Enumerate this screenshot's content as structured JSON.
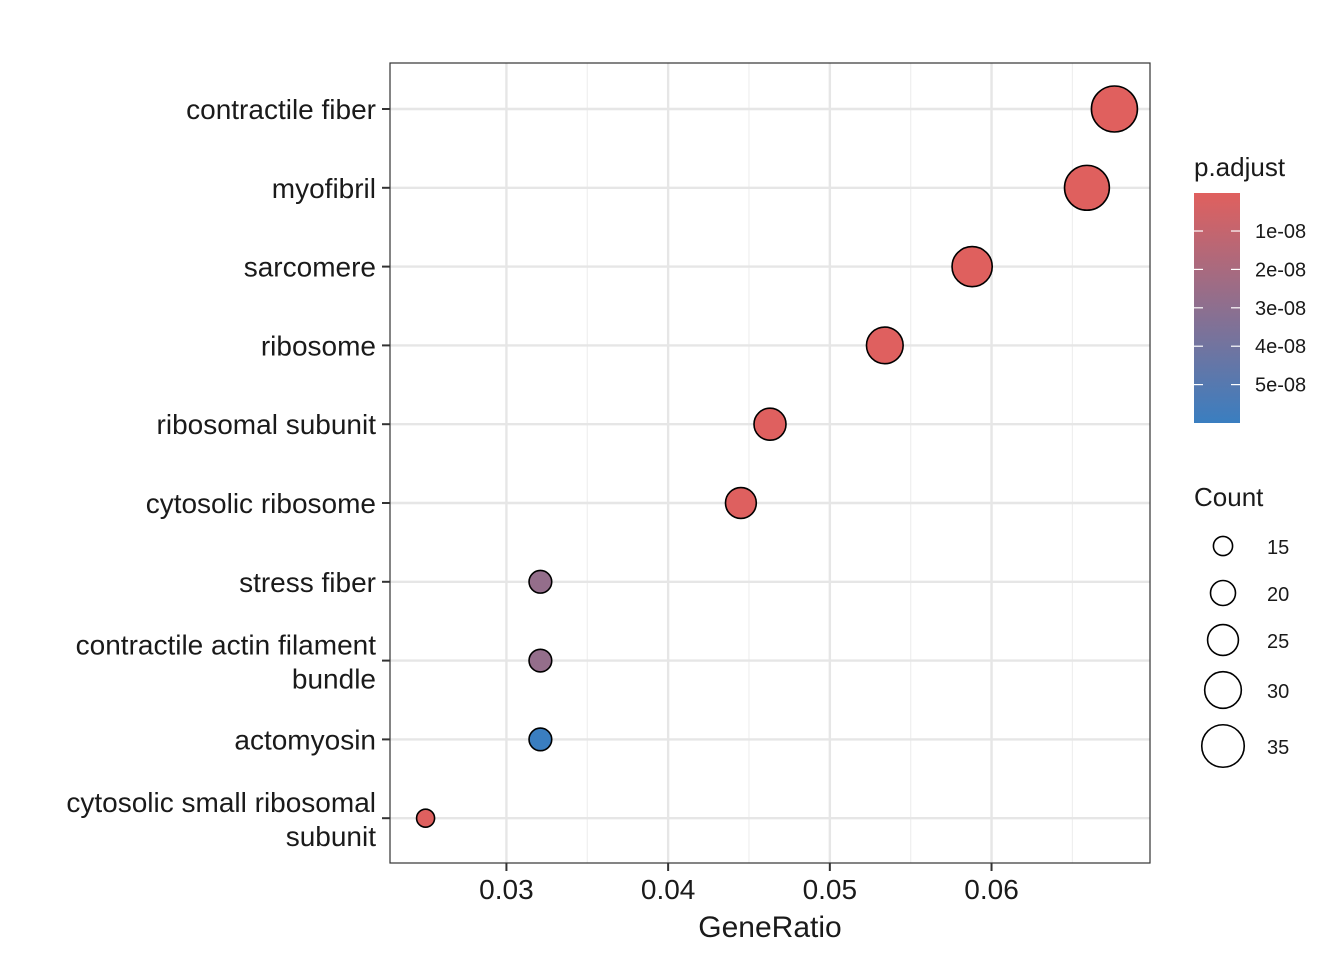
{
  "chart_data": {
    "type": "scatter",
    "xlabel": "GeneRatio",
    "ylabel": "",
    "xlim": [
      0.0228,
      0.0698
    ],
    "x_ticks": [
      "0.03",
      "0.04",
      "0.05",
      "0.06"
    ],
    "x_tick_values": [
      0.03,
      0.04,
      0.05,
      0.06
    ],
    "grid": true,
    "legend_position": "right",
    "categories": [
      [
        "contractile fiber"
      ],
      [
        "myofibril"
      ],
      [
        "sarcomere"
      ],
      [
        "ribosome"
      ],
      [
        "ribosomal subunit"
      ],
      [
        "cytosolic ribosome"
      ],
      [
        "stress fiber"
      ],
      [
        "contractile actin filament",
        "bundle"
      ],
      [
        "actomyosin"
      ],
      [
        "cytosolic small ribosomal",
        "subunit"
      ]
    ],
    "points": [
      {
        "x": 0.0676,
        "count": 38,
        "p_adjust": 1e-10
      },
      {
        "x": 0.0659,
        "count": 37,
        "p_adjust": 3e-10
      },
      {
        "x": 0.0588,
        "count": 33,
        "p_adjust": 4e-10
      },
      {
        "x": 0.0534,
        "count": 30,
        "p_adjust": 5e-10
      },
      {
        "x": 0.0463,
        "count": 26,
        "p_adjust": 6e-10
      },
      {
        "x": 0.0445,
        "count": 25,
        "p_adjust": 1e-09
      },
      {
        "x": 0.0321,
        "count": 18,
        "p_adjust": 2.75e-08
      },
      {
        "x": 0.0321,
        "count": 18,
        "p_adjust": 2.75e-08
      },
      {
        "x": 0.0321,
        "count": 18,
        "p_adjust": 6e-08
      },
      {
        "x": 0.025,
        "count": 14,
        "p_adjust": 1e-09
      }
    ],
    "color_legend": {
      "title": "p.adjust",
      "labels": [
        "1e-08",
        "2e-08",
        "3e-08",
        "4e-08",
        "5e-08"
      ],
      "values": [
        1e-08,
        2e-08,
        3e-08,
        4e-08,
        5e-08
      ],
      "low_color": "#E0605E",
      "high_color": "#3A7EC0",
      "range": [
        1e-10,
        6e-08
      ]
    },
    "size_legend": {
      "title": "Count",
      "labels": [
        "15",
        "20",
        "25",
        "30",
        "35"
      ],
      "values": [
        15,
        20,
        25,
        30,
        35
      ]
    }
  }
}
